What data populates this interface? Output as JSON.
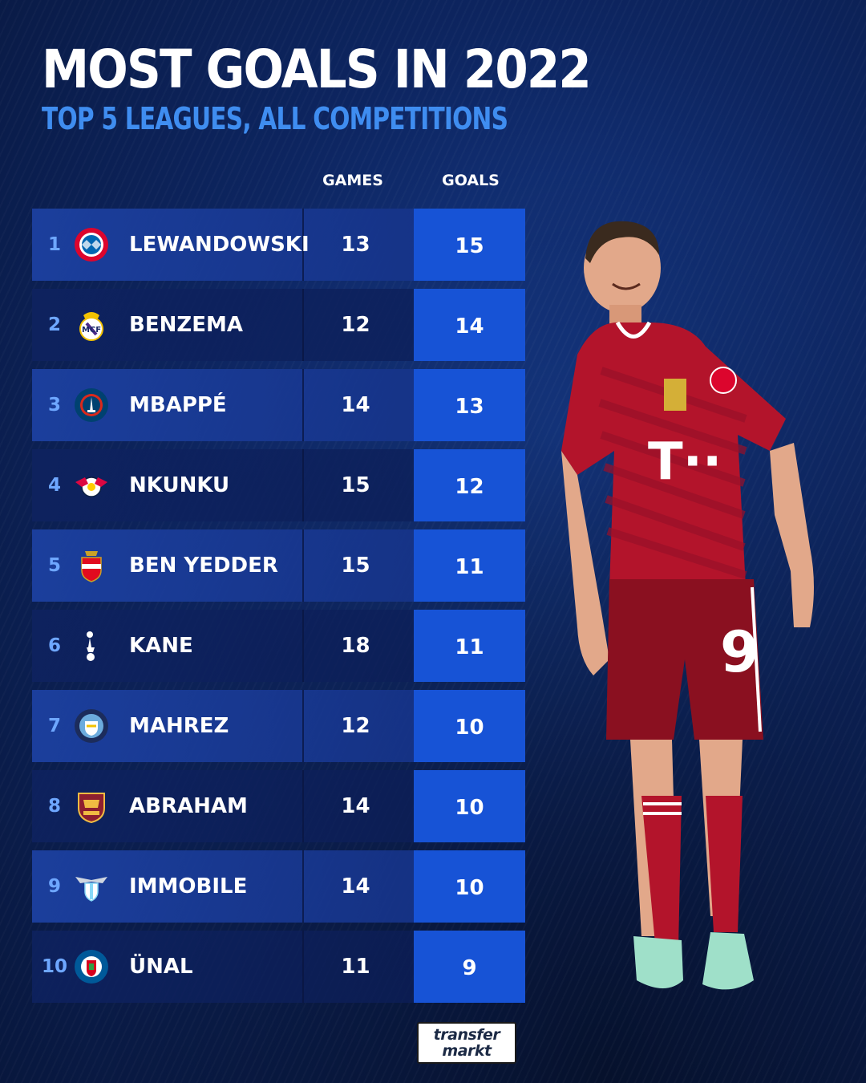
{
  "title": "MOST GOALS IN 2022",
  "subtitle": "TOP 5 LEAGUES, ALL COMPETITIONS",
  "columns": {
    "games": "GAMES",
    "goals": "GOALS"
  },
  "rows": [
    {
      "rank": "1",
      "name": "LEWANDOWSKI",
      "games": "13",
      "goals": "15",
      "club_icon": "bayern-munich-crest-icon"
    },
    {
      "rank": "2",
      "name": "BENZEMA",
      "games": "12",
      "goals": "14",
      "club_icon": "real-madrid-crest-icon"
    },
    {
      "rank": "3",
      "name": "MBAPPÉ",
      "games": "14",
      "goals": "13",
      "club_icon": "psg-crest-icon"
    },
    {
      "rank": "4",
      "name": "NKUNKU",
      "games": "15",
      "goals": "12",
      "club_icon": "rb-leipzig-crest-icon"
    },
    {
      "rank": "5",
      "name": "BEN YEDDER",
      "games": "15",
      "goals": "11",
      "club_icon": "monaco-crest-icon"
    },
    {
      "rank": "6",
      "name": "KANE",
      "games": "18",
      "goals": "11",
      "club_icon": "tottenham-crest-icon"
    },
    {
      "rank": "7",
      "name": "MAHREZ",
      "games": "12",
      "goals": "10",
      "club_icon": "manchester-city-crest-icon"
    },
    {
      "rank": "8",
      "name": "ABRAHAM",
      "games": "14",
      "goals": "10",
      "club_icon": "as-roma-crest-icon"
    },
    {
      "rank": "9",
      "name": "IMMOBILE",
      "games": "14",
      "goals": "10",
      "club_icon": "lazio-crest-icon"
    },
    {
      "rank": "10",
      "name": "ÜNAL",
      "games": "11",
      "goals": "9",
      "club_icon": "getafe-crest-icon"
    }
  ],
  "brand": {
    "line1": "transfer",
    "line2": "markt"
  },
  "colors": {
    "accent_blue": "#3f8df0",
    "goals_cell": "#1753d6",
    "rank_text": "#6ea7ff",
    "jersey_red": "#b3142b"
  }
}
